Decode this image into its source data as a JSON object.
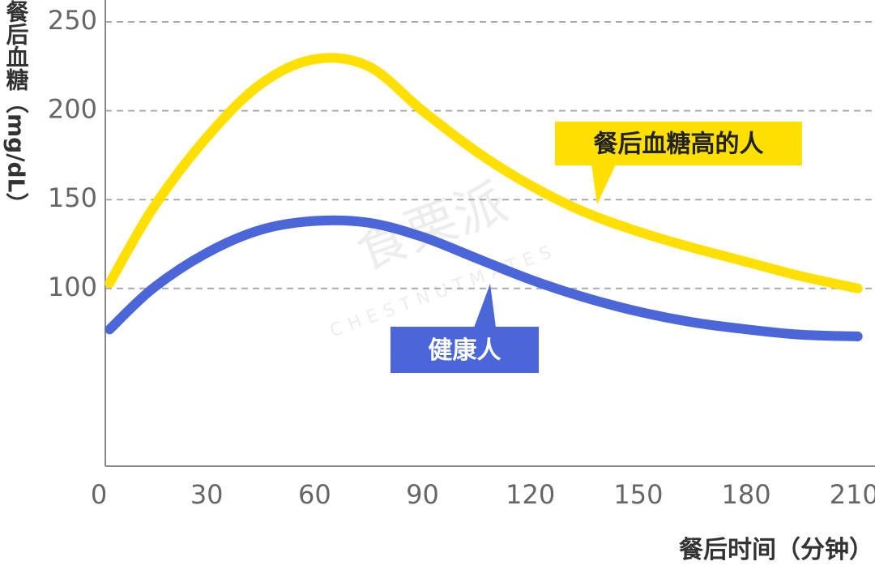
{
  "chart_data": {
    "type": "line",
    "y_label": "餐后血糖（mg/dL）",
    "x_label": "餐后时间（分钟）",
    "watermark": "食栗派",
    "watermark_sub": "CHESTNUTMATES",
    "x": [
      3,
      15,
      30,
      45,
      60,
      75,
      90,
      105,
      120,
      135,
      150,
      165,
      180,
      195,
      211
    ],
    "series": [
      {
        "name": "餐后血糖高的人",
        "color": "#ffe000",
        "values": [
          103,
          145,
          185,
          215,
          229,
          225,
          200,
          177,
          158,
          143,
          132,
          123,
          115,
          107,
          100
        ]
      },
      {
        "name": "健康人",
        "color": "#4a66d8",
        "values": [
          77,
          100,
          120,
          133,
          138,
          137,
          129,
          117,
          105,
          95,
          87,
          81,
          77,
          74,
          73
        ]
      }
    ],
    "xlim": [
      0,
      214
    ],
    "xticks": [
      0,
      30,
      60,
      90,
      120,
      150,
      180,
      210
    ],
    "ylim": [
      0,
      250
    ],
    "yticks": [
      100,
      150,
      200,
      250
    ],
    "grid": true
  }
}
